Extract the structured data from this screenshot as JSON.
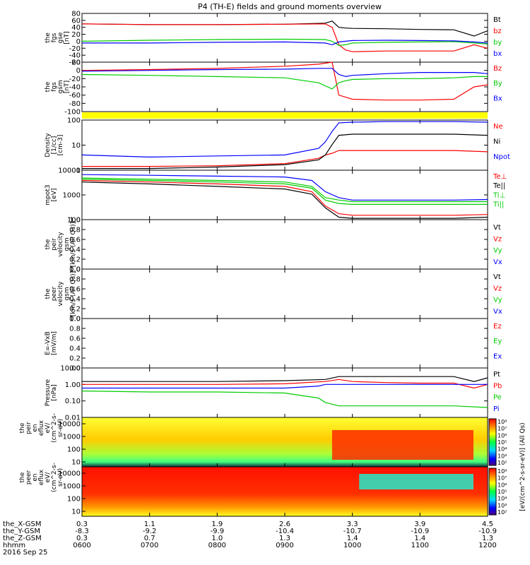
{
  "title": "P4 (TH-E) fields and ground moments overview",
  "chart_data": {
    "type": "line",
    "x_range_hours": [
      6,
      12
    ],
    "panels": [
      {
        "id": "fgs-gse",
        "ylabel_lines": [
          "the",
          "fgs",
          "gse",
          "[nT]"
        ],
        "ytick_labels": [
          "80",
          "60",
          "40",
          "20",
          "0",
          "-20",
          "-40",
          "-60"
        ],
        "ylim": [
          -60,
          80
        ],
        "series": [
          {
            "name": "Bt",
            "color": "#000000",
            "x": [
              6.0,
              7.0,
              8.0,
              9.0,
              9.6,
              9.7,
              9.8,
              9.9,
              10.0,
              10.5,
              11.0,
              11.5,
              11.8,
              12.0
            ],
            "y": [
              50,
              48,
              48,
              49,
              52,
              58,
              40,
              38,
              37,
              36,
              34,
              33,
              15,
              30
            ]
          },
          {
            "name": "bz",
            "color": "#ff0000",
            "x": [
              6.0,
              7.0,
              8.0,
              9.0,
              9.6,
              9.7,
              9.8,
              9.9,
              10.0,
              10.5,
              11.0,
              11.5,
              11.8,
              12.0
            ],
            "y": [
              50,
              48,
              48,
              49,
              50,
              40,
              -10,
              -25,
              -30,
              -28,
              -28,
              -28,
              -10,
              -20
            ]
          },
          {
            "name": "by",
            "color": "#00cc00",
            "x": [
              6.0,
              7.0,
              8.0,
              9.0,
              9.6,
              9.7,
              9.8,
              9.9,
              10.0,
              10.5,
              11.0,
              11.5,
              11.8,
              12.0
            ],
            "y": [
              0,
              3,
              5,
              6,
              5,
              0,
              -12,
              -10,
              -5,
              -3,
              -2,
              -1,
              -5,
              -8
            ]
          },
          {
            "name": "bx",
            "color": "#0000ff",
            "x": [
              6.0,
              7.0,
              8.0,
              9.0,
              9.6,
              9.7,
              9.8,
              9.9,
              10.0,
              10.5,
              11.0,
              11.5,
              11.8,
              12.0
            ],
            "y": [
              -5,
              -5,
              -3,
              -2,
              -5,
              -10,
              -2,
              0,
              2,
              3,
              2,
              1,
              -2,
              -5
            ]
          }
        ]
      },
      {
        "id": "fgs-gsm",
        "ylabel_lines": [
          "the",
          "fgs",
          "gsm",
          "[nT]"
        ],
        "ytick_labels": [
          "20",
          "0",
          "-20",
          "-40",
          "-60",
          "-80",
          "-100"
        ],
        "ylim": [
          -100,
          20
        ],
        "series": [
          {
            "name": "Bz",
            "color": "#ff0000",
            "x": [
              6.0,
              7.0,
              8.0,
              9.0,
              9.5,
              9.7,
              9.8,
              9.9,
              10.0,
              10.5,
              11.0,
              11.5,
              11.8,
              12.0
            ],
            "y": [
              0,
              2,
              5,
              10,
              15,
              20,
              -60,
              -65,
              -70,
              -72,
              -72,
              -70,
              -40,
              -35
            ]
          },
          {
            "name": "By",
            "color": "#00cc00",
            "x": [
              6.0,
              7.0,
              8.0,
              9.0,
              9.5,
              9.7,
              9.8,
              9.9,
              10.0,
              10.5,
              11.0,
              11.5,
              11.8,
              12.0
            ],
            "y": [
              -10,
              -12,
              -15,
              -18,
              -30,
              -45,
              -30,
              -25,
              -22,
              -20,
              -20,
              -18,
              -15,
              -15
            ]
          },
          {
            "name": "Bx",
            "color": "#0000ff",
            "x": [
              6.0,
              7.0,
              8.0,
              9.0,
              9.5,
              9.7,
              9.8,
              9.9,
              10.0,
              10.5,
              11.0,
              11.5,
              11.8,
              12.0
            ],
            "y": [
              -2,
              0,
              2,
              3,
              5,
              5,
              -10,
              -15,
              -12,
              -8,
              -5,
              -5,
              -5,
              -8
            ]
          }
        ]
      },
      {
        "id": "density",
        "ylabel_lines": [
          "Density",
          "[1/cc]",
          "[cm-3]"
        ],
        "ytick_labels": [
          "100",
          "10",
          "1"
        ],
        "log": true,
        "ylim": [
          1,
          200
        ],
        "series": [
          {
            "name": "Ne",
            "color": "#ff0000",
            "x": [
              6.0,
              7.0,
              8.0,
              9.0,
              9.5,
              9.6,
              9.7,
              9.8,
              10.0,
              10.5,
              11.0,
              11.5,
              12.0
            ],
            "y": [
              1.5,
              1.5,
              1.6,
              2.0,
              3.5,
              5,
              6,
              8,
              8,
              8,
              8,
              8,
              7
            ]
          },
          {
            "name": "Ni",
            "color": "#000000",
            "x": [
              6.0,
              7.0,
              8.0,
              9.0,
              9.5,
              9.6,
              9.7,
              9.8,
              10.0,
              10.5,
              11.0,
              11.5,
              12.0
            ],
            "y": [
              1.2,
              1.2,
              1.4,
              1.8,
              3,
              5,
              15,
              40,
              45,
              45,
              45,
              45,
              40
            ]
          },
          {
            "name": "Npot",
            "color": "#0000ff",
            "x": [
              6.0,
              7.0,
              8.0,
              9.0,
              9.5,
              9.6,
              9.7,
              9.8,
              10.0,
              10.5,
              11.0,
              11.5,
              12.0
            ],
            "y": [
              5,
              4,
              4.5,
              5,
              10,
              20,
              60,
              150,
              160,
              170,
              170,
              170,
              160
            ]
          }
        ]
      },
      {
        "id": "temperature",
        "ylabel_lines": [
          "mpot3",
          "[eV]"
        ],
        "ytick_labels": [
          "10000",
          "1000",
          "100"
        ],
        "log": true,
        "ylim": [
          30,
          10000
        ],
        "series": [
          {
            "name": "Te⊥",
            "color": "#ff0000",
            "x": [
              6.0,
              7.0,
              8.0,
              9.0,
              9.4,
              9.6,
              9.8,
              10.0,
              10.5,
              11.0,
              11.5,
              12.0
            ],
            "y": [
              3000,
              2500,
              2000,
              1500,
              800,
              150,
              60,
              50,
              50,
              50,
              50,
              55
            ]
          },
          {
            "name": "Te||",
            "color": "#000000",
            "x": [
              6.0,
              7.0,
              8.0,
              9.0,
              9.4,
              9.6,
              9.8,
              10.0,
              10.5,
              11.0,
              11.5,
              12.0
            ],
            "y": [
              2500,
              2000,
              1500,
              1100,
              600,
              120,
              40,
              35,
              35,
              35,
              35,
              40
            ]
          },
          {
            "name": "Ti⊥",
            "color": "#00cc00",
            "x": [
              6.0,
              7.0,
              8.0,
              9.0,
              9.4,
              9.6,
              9.8,
              10.0,
              10.5,
              11.0,
              11.5,
              12.0
            ],
            "y": [
              4000,
              3500,
              3000,
              2500,
              1500,
              400,
              300,
              250,
              250,
              250,
              250,
              250
            ]
          },
          {
            "name": "Ti||",
            "color": "#00cc00",
            "x": [
              6.0,
              7.0,
              8.0,
              9.0,
              9.4,
              9.6,
              9.8,
              10.0,
              10.5,
              11.0,
              11.5,
              12.0
            ],
            "y": [
              3500,
              3000,
              2500,
              2000,
              1200,
              300,
              200,
              180,
              180,
              180,
              180,
              180
            ]
          },
          {
            "name": "",
            "color": "#0000ff",
            "x": [
              6.0,
              7.0,
              8.0,
              9.0,
              9.4,
              9.6,
              9.8,
              10.0,
              10.5,
              11.0,
              11.5,
              12.0
            ],
            "y": [
              6000,
              5500,
              5000,
              4500,
              3000,
              800,
              400,
              300,
              300,
              300,
              300,
              320
            ]
          }
        ]
      },
      {
        "id": "peir-velocity",
        "ylabel_lines": [
          "the",
          "peir",
          "velocity",
          "gsm",
          "[km/s (All Qs)]"
        ],
        "ytick_labels": [
          "1.0",
          "0.8",
          "0.6",
          "0.4",
          "0.2",
          "0.0"
        ],
        "ylim": [
          0,
          1
        ],
        "empty": true,
        "legend": [
          "Vt",
          "Vz",
          "Vy",
          "Vx"
        ],
        "legend_colors": [
          "#000000",
          "#ff0000",
          "#00cc00",
          "#0000ff"
        ]
      },
      {
        "id": "peer-velocity",
        "ylabel_lines": [
          "the",
          "peer",
          "velocity",
          "gsm",
          "[km/s (All Qs)]"
        ],
        "ytick_labels": [
          "1.0",
          "0.8",
          "0.6",
          "0.4",
          "0.2",
          "0.0"
        ],
        "ylim": [
          0,
          1
        ],
        "empty": true,
        "legend": [
          "Vt",
          "Vz",
          "Vy",
          "Vx"
        ],
        "legend_colors": [
          "#000000",
          "#ff0000",
          "#00cc00",
          "#0000ff"
        ]
      },
      {
        "id": "efield",
        "ylabel_lines": [
          "E=-VxB",
          "[mV/m]"
        ],
        "ytick_labels": [
          "1.0",
          "0.8",
          "0.6",
          "0.4",
          "0.2",
          "0.0"
        ],
        "ylim": [
          0,
          1
        ],
        "empty": true,
        "legend": [
          "Ez",
          "Ey",
          "Ex"
        ],
        "legend_colors": [
          "#ff0000",
          "#00cc00",
          "#0000ff"
        ]
      },
      {
        "id": "pressure",
        "ylabel_lines": [
          "Pressure",
          "[nPa]"
        ],
        "ytick_labels": [
          "10.00",
          "1.00",
          "0.10",
          "0.01"
        ],
        "log": true,
        "ylim": [
          0.01,
          10
        ],
        "series": [
          {
            "name": "Pt",
            "color": "#000000",
            "x": [
              6.0,
              7.0,
              8.0,
              9.0,
              9.6,
              9.8,
              10.0,
              10.5,
              11.0,
              11.5,
              11.8,
              12.0
            ],
            "y": [
              1.5,
              1.5,
              1.5,
              1.7,
              2.0,
              3.0,
              3.0,
              3.0,
              3.0,
              3.0,
              1.5,
              2.5
            ]
          },
          {
            "name": "Pb",
            "color": "#ff0000",
            "x": [
              6.0,
              7.0,
              8.0,
              9.0,
              9.6,
              9.8,
              10.0,
              10.5,
              11.0,
              11.5,
              11.8,
              12.0
            ],
            "y": [
              1.0,
              1.0,
              1.0,
              1.1,
              1.5,
              2.0,
              1.5,
              1.3,
              1.2,
              1.2,
              0.6,
              1.0
            ]
          },
          {
            "name": "Pe",
            "color": "#00cc00",
            "x": [
              6.0,
              7.0,
              8.0,
              9.0,
              9.5,
              9.6,
              9.8,
              10.0,
              10.5,
              11.0,
              11.5,
              12.0
            ],
            "y": [
              0.4,
              0.35,
              0.35,
              0.3,
              0.15,
              0.08,
              0.05,
              0.05,
              0.05,
              0.05,
              0.05,
              0.04
            ]
          },
          {
            "name": "Pi",
            "color": "#0000ff",
            "x": [
              6.0,
              7.0,
              8.0,
              9.0,
              9.5,
              9.6,
              9.8,
              10.0,
              10.5,
              11.0,
              11.5,
              12.0
            ],
            "y": [
              0.6,
              0.6,
              0.6,
              0.6,
              0.8,
              1.0,
              1.0,
              1.0,
              1.0,
              1.0,
              1.0,
              1.0
            ]
          }
        ]
      }
    ],
    "spectrograms": [
      {
        "id": "peir-eflux",
        "ylabel_lines": [
          "the",
          "peir",
          "en",
          "eflux",
          "eV/",
          "(cm^2-s-",
          "sr-eV)"
        ],
        "ytick_labels": [
          "10000",
          "1000",
          "100",
          "10"
        ]
      },
      {
        "id": "peer-eflux",
        "ylabel_lines": [
          "the",
          "peer",
          "en",
          "eflux",
          "eV/",
          "(cm^2-s-",
          "sr-eV)"
        ],
        "ytick_labels": [
          "10000",
          "1000",
          "100",
          "10"
        ]
      }
    ],
    "colorbars": [
      {
        "tick_labels": [
          "10⁸",
          "10⁷",
          "10⁶",
          "10⁵",
          "10⁴",
          "10³",
          "10²"
        ]
      },
      {
        "tick_labels": [
          "10⁸",
          "10⁷",
          "10⁶",
          "10⁵",
          "10⁴",
          "10³",
          "10²"
        ]
      }
    ],
    "colorbar_label": "[eV/(cm^2-s-sr-eV)] (All Qs)",
    "ephemeris": {
      "row_labels": [
        "the_X-GSM",
        "the_Y-GSM",
        "the_Z-GSM",
        "hhmm"
      ],
      "date": "2016 Sep 25",
      "columns": [
        [
          "0.3",
          "-8.3",
          "0.3",
          "0600"
        ],
        [
          "1.1",
          "-9.2",
          "0.7",
          "0700"
        ],
        [
          "1.9",
          "-9.9",
          "1.0",
          "0800"
        ],
        [
          "2.6",
          "-10.4",
          "1.3",
          "0900"
        ],
        [
          "3.3",
          "-10.7",
          "1.4",
          "1000"
        ],
        [
          "3.9",
          "-10.9",
          "1.4",
          "1100"
        ],
        [
          "4.5",
          "-10.9",
          "1.3",
          "1200"
        ]
      ]
    }
  }
}
